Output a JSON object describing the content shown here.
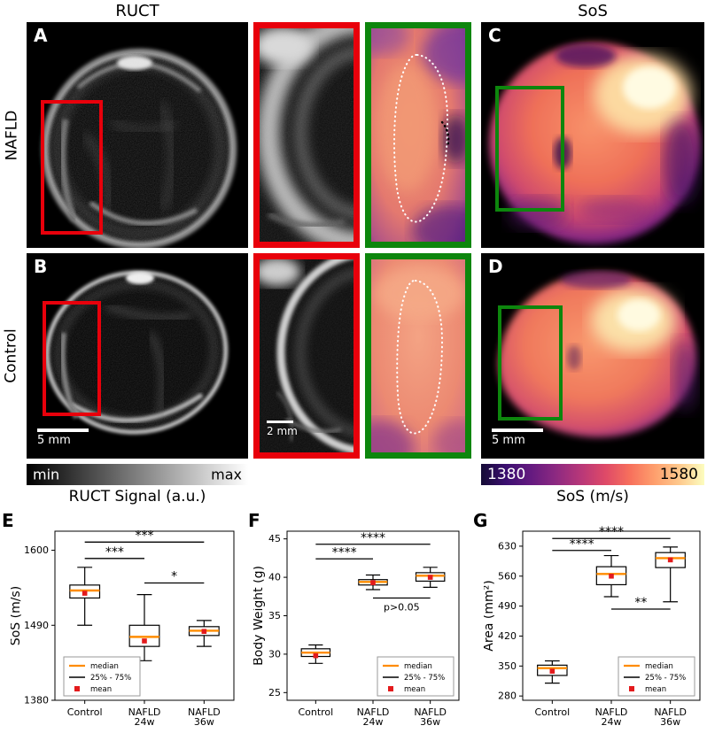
{
  "header": {
    "ruct": "RUCT",
    "sos": "SoS"
  },
  "rows": [
    {
      "label": "NAFLD"
    },
    {
      "label": "Control"
    }
  ],
  "panels": {
    "a": {
      "letter": "A"
    },
    "b": {
      "letter": "B",
      "scalebar": "5 mm"
    },
    "c": {
      "letter": "C"
    },
    "d": {
      "letter": "D",
      "scalebar": "5 mm"
    },
    "zoom_red_b": {
      "scalebar": "2 mm"
    }
  },
  "colorbars": {
    "ruct": {
      "min": "min",
      "max": "max",
      "title": "RUCT Signal (a.u.)"
    },
    "sos": {
      "min": "1380",
      "max": "1580",
      "title": "SoS (m/s)"
    }
  },
  "colors": {
    "roi_red": "#e8000b",
    "roi_green": "#0d860d",
    "median": "#ff8c00",
    "mean": "#e31a1c"
  },
  "chart_data": [
    {
      "type": "box",
      "panel_letter": "E",
      "ylabel": "SoS (m/s)",
      "ylim": [
        1380,
        1628
      ],
      "yticks": [
        1600,
        1490,
        1380
      ],
      "categories": [
        [
          "Control"
        ],
        [
          "NAFLD",
          "24w"
        ],
        [
          "NAFLD",
          "36w"
        ]
      ],
      "boxes": [
        {
          "whisker_low": 1490,
          "q1": 1530,
          "median": 1541,
          "q3": 1549,
          "whisker_high": 1575,
          "mean": 1537
        },
        {
          "whisker_low": 1438,
          "q1": 1459,
          "median": 1473,
          "q3": 1490,
          "whisker_high": 1535,
          "mean": 1467
        },
        {
          "whisker_low": 1459,
          "q1": 1475,
          "median": 1482,
          "q3": 1488,
          "whisker_high": 1497,
          "mean": 1481
        }
      ],
      "significance": [
        {
          "a": 0,
          "b": 2,
          "y": 1612,
          "label": "***"
        },
        {
          "a": 0,
          "b": 1,
          "y": 1588,
          "label": "***"
        },
        {
          "a": 1,
          "b": 2,
          "y": 1552,
          "label": "*"
        }
      ],
      "legend": [
        "median",
        "25% - 75%",
        "mean"
      ],
      "legend_pos": "left"
    },
    {
      "type": "box",
      "panel_letter": "F",
      "ylabel": "Body Weight (g)",
      "ylim": [
        24,
        46
      ],
      "yticks": [
        45,
        40,
        35,
        30,
        25
      ],
      "categories": [
        [
          "Control"
        ],
        [
          "NAFLD",
          "24w"
        ],
        [
          "NAFLD",
          "36w"
        ]
      ],
      "boxes": [
        {
          "whisker_low": 28.8,
          "q1": 29.7,
          "median": 30.2,
          "q3": 30.7,
          "whisker_high": 31.2,
          "mean": 29.8
        },
        {
          "whisker_low": 38.4,
          "q1": 39.0,
          "median": 39.4,
          "q3": 39.7,
          "whisker_high": 40.3,
          "mean": 39.3
        },
        {
          "whisker_low": 38.7,
          "q1": 39.5,
          "median": 40.2,
          "q3": 40.6,
          "whisker_high": 41.3,
          "mean": 40.0
        }
      ],
      "significance": [
        {
          "a": 0,
          "b": 2,
          "y": 44.3,
          "label": "****"
        },
        {
          "a": 0,
          "b": 1,
          "y": 42.4,
          "label": "****"
        },
        {
          "a": 1,
          "b": 2,
          "y": 37.3,
          "label": "p>0.05",
          "below": true
        }
      ],
      "legend": [
        "median",
        "25% - 75%",
        "mean"
      ],
      "legend_pos": "right"
    },
    {
      "type": "box",
      "panel_letter": "G",
      "ylabel": "Area (mm²)",
      "ylim": [
        270,
        665
      ],
      "yticks": [
        630,
        560,
        490,
        420,
        350,
        280
      ],
      "categories": [
        [
          "Control"
        ],
        [
          "NAFLD",
          "24w"
        ],
        [
          "NAFLD",
          "36w"
        ]
      ],
      "boxes": [
        {
          "whisker_low": 310,
          "q1": 328,
          "median": 345,
          "q3": 352,
          "whisker_high": 362,
          "mean": 338
        },
        {
          "whisker_low": 512,
          "q1": 540,
          "median": 565,
          "q3": 582,
          "whisker_high": 608,
          "mean": 560
        },
        {
          "whisker_low": 500,
          "q1": 580,
          "median": 602,
          "q3": 615,
          "whisker_high": 628,
          "mean": 598
        }
      ],
      "significance": [
        {
          "a": 0,
          "b": 2,
          "y": 648,
          "label": "****"
        },
        {
          "a": 0,
          "b": 1,
          "y": 620,
          "label": "****"
        },
        {
          "a": 1,
          "b": 2,
          "y": 483,
          "label": "**"
        }
      ],
      "legend": [
        "median",
        "25% - 75%",
        "mean"
      ],
      "legend_pos": "right"
    }
  ]
}
